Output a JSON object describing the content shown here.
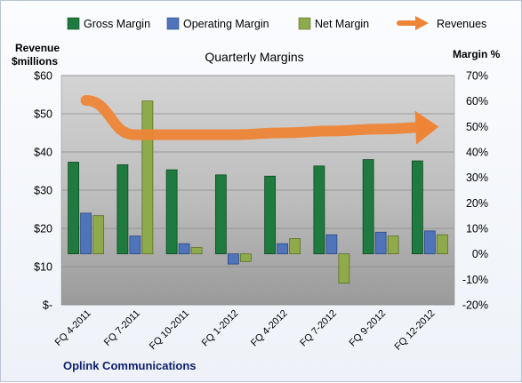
{
  "chart_data": {
    "type": "bar",
    "title": "Quarterly Margins",
    "company": "Oplink Communications",
    "left_axis_label": [
      "Revenue",
      "$millions"
    ],
    "right_axis_label": "Margin %",
    "categories": [
      "FQ 4-2011",
      "FQ 7-2011",
      "FQ 10-2011",
      "FQ 1-2012",
      "FQ 4-2012",
      "FQ 7-2012",
      "FQ 9-2012",
      "FQ 12-2012"
    ],
    "left_ticks": [
      "$-",
      "$10",
      "$20",
      "$30",
      "$40",
      "$50",
      "$60"
    ],
    "left_ylim": [
      0,
      60
    ],
    "right_ticks": [
      "-20%",
      "-10%",
      "0%",
      "10%",
      "20%",
      "30%",
      "40%",
      "50%",
      "60%",
      "70%"
    ],
    "right_ylim": [
      -20,
      70
    ],
    "series": [
      {
        "name": "Gross Margin",
        "axis": "right",
        "color": "#1e7a3e",
        "values": [
          36,
          35,
          33,
          31,
          30.5,
          34.5,
          37,
          36.5
        ]
      },
      {
        "name": "Operating Margin",
        "axis": "right",
        "color": "#4f74b9",
        "values": [
          16,
          7,
          4,
          -4,
          4,
          7.5,
          8.5,
          9
        ]
      },
      {
        "name": "Net Margin",
        "axis": "right",
        "color": "#8faa4b",
        "values": [
          15,
          60,
          2.5,
          -3,
          6,
          -11.5,
          7,
          7.5
        ]
      },
      {
        "name": "Revenues",
        "axis": "left",
        "type": "line",
        "color": "#ee8536",
        "values": [
          53.5,
          44.5,
          44.5,
          44.5,
          45,
          45.5,
          46,
          46.5
        ]
      }
    ],
    "grid": true,
    "legend": "top"
  }
}
